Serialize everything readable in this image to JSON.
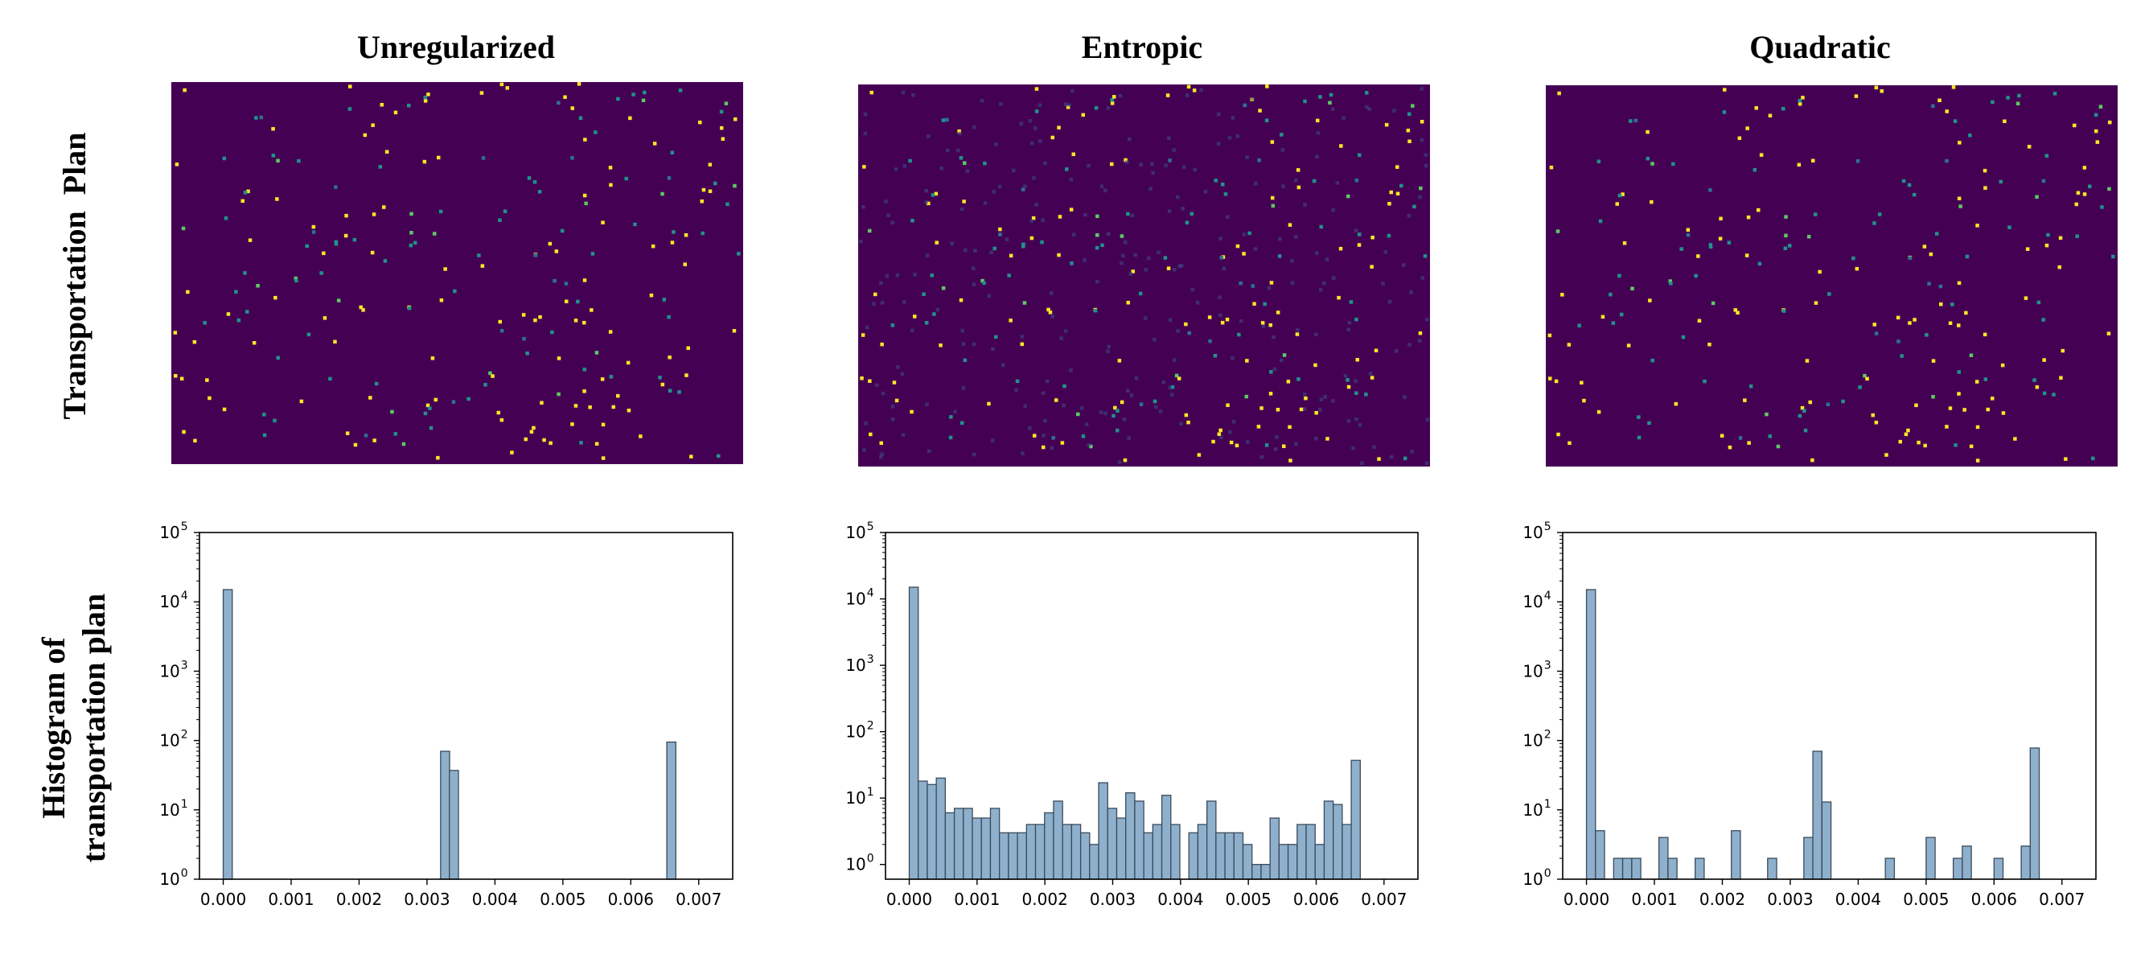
{
  "figure": {
    "column_titles": [
      "Unregularized",
      "Entropic",
      "Quadratic"
    ],
    "row_titles": {
      "plan": "Transportation  Plan",
      "hist_line1": "Histogram of",
      "hist_line2": "transportation plan"
    },
    "colors": {
      "heatmap_background": "#440154",
      "heatmap_points": [
        "#fde725",
        "#21918c",
        "#3b528b",
        "#5ec962",
        "#2c728e"
      ],
      "bar_fill": "#8fb0cc",
      "bar_edge": "#3a4a5a"
    }
  },
  "chart_data": [
    {
      "type": "heatmap",
      "title": "Unregularized",
      "colormap": "viridis",
      "description_of_values": "sparse transport plan, mostly zeros"
    },
    {
      "type": "heatmap",
      "title": "Entropic",
      "colormap": "viridis"
    },
    {
      "type": "heatmap",
      "title": "Quadratic",
      "colormap": "viridis"
    },
    {
      "type": "bar",
      "title": "Unregularized",
      "yscale": "log",
      "xlim": [
        -0.00035,
        0.0075
      ],
      "ylim": [
        1,
        100000
      ],
      "xticks": [
        "0.000",
        "0.001",
        "0.002",
        "0.003",
        "0.004",
        "0.005",
        "0.006",
        "0.007"
      ],
      "yticks_exp": [
        "0",
        "1",
        "2",
        "3",
        "4",
        "5"
      ],
      "bin_width": 0.000133,
      "bins_start": [
        0.0,
        0.0032,
        0.00333,
        0.00653
      ],
      "values": [
        15000,
        70,
        37,
        95
      ]
    },
    {
      "type": "bar",
      "title": "Entropic",
      "yscale": "log",
      "xlim": [
        -0.00035,
        0.0075
      ],
      "ylim": [
        0.6,
        100000
      ],
      "xticks": [
        "0.000",
        "0.001",
        "0.002",
        "0.003",
        "0.004",
        "0.005",
        "0.006",
        "0.007"
      ],
      "yticks_exp": [
        "0",
        "1",
        "2",
        "3",
        "4",
        "5"
      ],
      "bin_width": 0.000133,
      "bins_start_first": 0.0,
      "values": [
        15000,
        18,
        16,
        20,
        6,
        7,
        7,
        5,
        5,
        7,
        3,
        3,
        3,
        4,
        4,
        6,
        9,
        4,
        4,
        3,
        2,
        17,
        7,
        5,
        12,
        9,
        3,
        4,
        11,
        4,
        0,
        3,
        4,
        9,
        3,
        3,
        3,
        2,
        1,
        1,
        5,
        2,
        2,
        4,
        4,
        2,
        9,
        8,
        4,
        37
      ]
    },
    {
      "type": "bar",
      "title": "Quadratic",
      "yscale": "log",
      "xlim": [
        -0.00035,
        0.0075
      ],
      "ylim": [
        1,
        100000
      ],
      "xticks": [
        "0.000",
        "0.001",
        "0.002",
        "0.003",
        "0.004",
        "0.005",
        "0.006",
        "0.007"
      ],
      "yticks_exp": [
        "0",
        "1",
        "2",
        "3",
        "4",
        "5"
      ],
      "bin_width": 0.000133,
      "bins_start": [
        0.0,
        0.000133,
        0.0004,
        0.000533,
        0.000667,
        0.001067,
        0.0012,
        0.0016,
        0.002133,
        0.002667,
        0.0032,
        0.003333,
        0.003467,
        0.0044,
        0.005,
        0.0054,
        0.005533,
        0.006,
        0.0064,
        0.006533
      ],
      "values": [
        15000,
        5,
        2,
        2,
        2,
        4,
        2,
        2,
        5,
        2,
        4,
        70,
        13,
        2,
        4,
        2,
        3,
        2,
        3,
        78
      ]
    }
  ]
}
